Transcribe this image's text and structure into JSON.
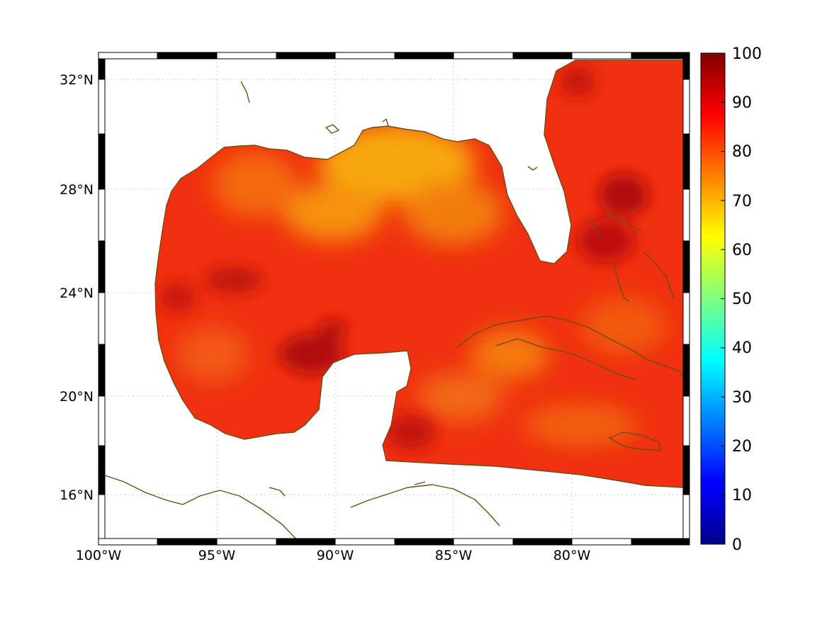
{
  "map": {
    "longitude_labels": [
      "100°W",
      "95°W",
      "90°W",
      "85°W",
      "80°W"
    ],
    "latitude_labels": [
      "32°N",
      "28°N",
      "24°N",
      "20°N",
      "16°N"
    ],
    "grid": true,
    "frame": "black-and-white graticule border",
    "data_field_colors": {
      "main": "#f03010",
      "yellow_orange_area": "#f7a808",
      "dark_red_area": "#b00808",
      "coastline": "#6b4e16",
      "land": "#ffffff"
    }
  },
  "colorbar": {
    "tick_labels": [
      "100",
      "90",
      "80",
      "70",
      "60",
      "50",
      "40",
      "30",
      "20",
      "10",
      "0"
    ],
    "range": [
      0,
      100
    ],
    "colormap": "jet"
  }
}
